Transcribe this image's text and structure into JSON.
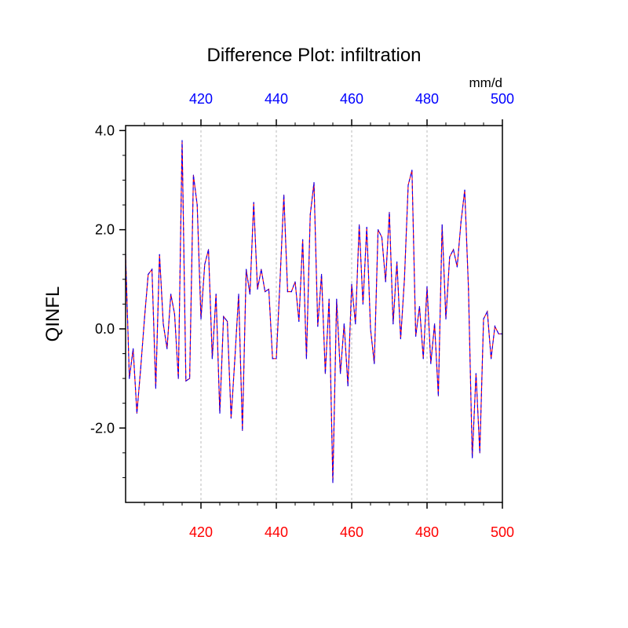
{
  "chart_data": {
    "type": "line",
    "title": "Difference Plot: infiltration",
    "ylabel": "QINFL",
    "units": "mm/d",
    "xlim": [
      400,
      500
    ],
    "ylim": [
      -3.5,
      4.1
    ],
    "x_tick_labels": [
      "420",
      "440",
      "460",
      "480",
      "500"
    ],
    "y_tick_labels": [
      "4.0",
      "2.0",
      "0.0",
      "-2.0"
    ],
    "grid": "vertical dashed at major x ticks",
    "colors": {
      "bottom_axis_labels": "#ff0000",
      "top_axis_labels": "#0000ff",
      "series_a": "#ff0000",
      "series_b": "#0000ff",
      "grid": "#bbbbbb"
    },
    "series": [
      {
        "x": [
          400,
          401,
          402,
          403,
          404,
          405,
          406,
          407,
          408,
          409,
          410,
          411,
          412,
          413,
          414,
          415,
          416,
          417,
          418,
          419,
          420,
          421,
          422,
          423,
          424,
          425,
          426,
          427,
          428,
          429,
          430,
          431,
          432,
          433,
          434,
          435,
          436,
          437,
          438,
          439,
          440,
          441,
          442,
          443,
          444,
          445,
          446,
          447,
          448,
          449,
          450,
          451,
          452,
          453,
          454,
          455,
          456,
          457,
          458,
          459,
          460,
          461,
          462,
          463,
          464,
          465,
          466,
          467,
          468,
          469,
          470,
          471,
          472,
          473,
          474,
          475,
          476,
          477,
          478,
          479,
          480,
          481,
          482,
          483,
          484,
          485,
          486,
          487,
          488,
          489,
          490,
          491,
          492,
          493,
          494,
          495,
          496,
          497,
          498,
          499,
          500
        ],
        "y": [
          1.5,
          -1.0,
          -0.4,
          -1.7,
          -0.8,
          0.2,
          1.1,
          1.2,
          -1.2,
          1.5,
          0.1,
          -0.4,
          0.7,
          0.3,
          -1.0,
          3.8,
          -1.05,
          -1.0,
          3.1,
          2.5,
          0.2,
          1.3,
          1.6,
          -0.6,
          0.7,
          -1.7,
          0.25,
          0.15,
          -1.8,
          -0.6,
          0.7,
          -2.05,
          1.2,
          0.7,
          2.55,
          0.8,
          1.2,
          0.75,
          0.8,
          -0.6,
          -0.6,
          1.0,
          2.7,
          0.75,
          0.75,
          0.95,
          0.15,
          1.8,
          -0.6,
          2.3,
          2.95,
          0.05,
          1.1,
          -0.9,
          0.6,
          -3.1,
          0.6,
          -0.9,
          0.1,
          -1.15,
          0.9,
          0.1,
          2.1,
          0.5,
          2.05,
          0.0,
          -0.7,
          2.0,
          1.85,
          0.95,
          2.35,
          0.1,
          1.35,
          -0.2,
          1.0,
          2.9,
          3.2,
          -0.15,
          0.45,
          -0.6,
          0.85,
          -0.7,
          0.1,
          -1.35,
          2.1,
          0.2,
          1.45,
          1.6,
          1.25,
          2.15,
          2.8,
          0.8,
          -2.6,
          -0.9,
          -2.5,
          0.2,
          0.35,
          -0.6,
          0.05,
          -0.1,
          -0.1
        ]
      }
    ]
  }
}
